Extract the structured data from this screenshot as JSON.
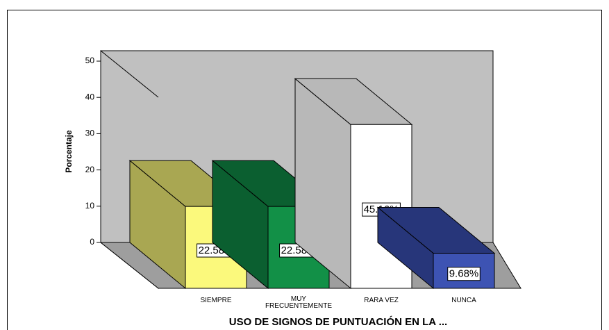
{
  "chart_data": {
    "type": "bar3d",
    "x_label": "USO DE SIGNOS DE PUNTUACIÓN EN LA ...",
    "y_label": "Porcentaje",
    "categories": [
      "SIEMPRE",
      "MUY FRECUENTEMENTE",
      "RARA VEZ",
      "NUNCA"
    ],
    "values": [
      22.58,
      22.58,
      45.16,
      9.68
    ],
    "value_labels": [
      "22.58%",
      "22.58%",
      "45.16%",
      "9.68%"
    ],
    "colors": [
      "#fbf97c",
      "#129047",
      "#ffffff",
      "#3d53b3"
    ],
    "side_colors": [
      "#a9a752",
      "#0b5f30",
      "#b8b8b8",
      "#27367a"
    ],
    "ylim": [
      0,
      50
    ],
    "yticks": [
      0,
      10,
      20,
      30,
      40,
      50
    ]
  }
}
